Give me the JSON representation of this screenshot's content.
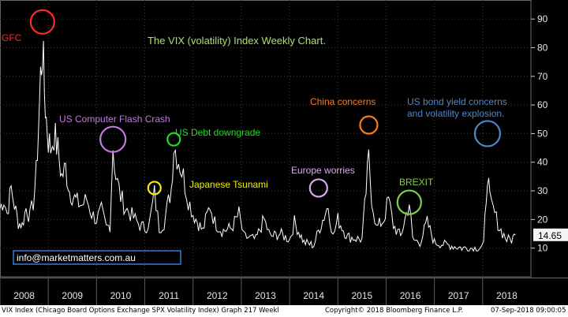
{
  "chart_data": {
    "type": "line",
    "title": "The VIX (volatility) Index Weekly Chart.",
    "xlabel": "",
    "ylabel": "",
    "xlim": [
      2008,
      2019
    ],
    "ylim": [
      0,
      95
    ],
    "x_ticks": [
      "2008",
      "2009",
      "2010",
      "2011",
      "2012",
      "2013",
      "2014",
      "2015",
      "2016",
      "2017",
      "2018"
    ],
    "y_ticks": [
      10,
      20,
      30,
      40,
      50,
      60,
      70,
      80,
      90
    ],
    "grid": true,
    "last_value": "14.65",
    "series": [
      {
        "points": [
          [
            2008.0,
            24
          ],
          [
            2008.08,
            27
          ],
          [
            2008.15,
            22
          ],
          [
            2008.23,
            31
          ],
          [
            2008.3,
            25
          ],
          [
            2008.38,
            19
          ],
          [
            2008.46,
            18
          ],
          [
            2008.54,
            24
          ],
          [
            2008.62,
            21
          ],
          [
            2008.69,
            26
          ],
          [
            2008.75,
            36
          ],
          [
            2008.8,
            53
          ],
          [
            2008.84,
            70
          ],
          [
            2008.88,
            80
          ],
          [
            2008.92,
            65
          ],
          [
            2008.96,
            55
          ],
          [
            2009.0,
            48
          ],
          [
            2009.05,
            45
          ],
          [
            2009.12,
            50
          ],
          [
            2009.2,
            44
          ],
          [
            2009.28,
            35
          ],
          [
            2009.36,
            38
          ],
          [
            2009.44,
            30
          ],
          [
            2009.52,
            28
          ],
          [
            2009.6,
            26
          ],
          [
            2009.7,
            25
          ],
          [
            2009.8,
            27
          ],
          [
            2009.9,
            22
          ],
          [
            2010.0,
            20
          ],
          [
            2010.1,
            23
          ],
          [
            2010.2,
            17
          ],
          [
            2010.28,
            18
          ],
          [
            2010.34,
            46
          ],
          [
            2010.4,
            35
          ],
          [
            2010.5,
            28
          ],
          [
            2010.6,
            24
          ],
          [
            2010.7,
            22
          ],
          [
            2010.8,
            20
          ],
          [
            2010.9,
            18
          ],
          [
            2011.0,
            17
          ],
          [
            2011.1,
            19
          ],
          [
            2011.2,
            29
          ],
          [
            2011.3,
            17
          ],
          [
            2011.4,
            19
          ],
          [
            2011.55,
            31
          ],
          [
            2011.6,
            46
          ],
          [
            2011.7,
            41
          ],
          [
            2011.8,
            35
          ],
          [
            2011.9,
            27
          ],
          [
            2012.0,
            22
          ],
          [
            2012.2,
            16
          ],
          [
            2012.35,
            25
          ],
          [
            2012.45,
            19
          ],
          [
            2012.6,
            16
          ],
          [
            2012.8,
            17
          ],
          [
            2012.95,
            22
          ],
          [
            2013.05,
            14
          ],
          [
            2013.3,
            13
          ],
          [
            2013.47,
            20
          ],
          [
            2013.6,
            14
          ],
          [
            2013.8,
            15
          ],
          [
            2014.0,
            13
          ],
          [
            2014.1,
            19
          ],
          [
            2014.3,
            12
          ],
          [
            2014.5,
            11
          ],
          [
            2014.6,
            16
          ],
          [
            2014.8,
            25
          ],
          [
            2014.9,
            14
          ],
          [
            2015.0,
            20
          ],
          [
            2015.2,
            14
          ],
          [
            2015.5,
            13
          ],
          [
            2015.64,
            41
          ],
          [
            2015.7,
            28
          ],
          [
            2015.8,
            17
          ],
          [
            2015.95,
            20
          ],
          [
            2016.05,
            27
          ],
          [
            2016.15,
            18
          ],
          [
            2016.3,
            14
          ],
          [
            2016.48,
            26
          ],
          [
            2016.55,
            13
          ],
          [
            2016.7,
            12
          ],
          [
            2016.85,
            19
          ],
          [
            2017.0,
            12
          ],
          [
            2017.3,
            11
          ],
          [
            2017.6,
            10
          ],
          [
            2017.9,
            10
          ],
          [
            2018.02,
            11
          ],
          [
            2018.1,
            37
          ],
          [
            2018.15,
            26
          ],
          [
            2018.25,
            22
          ],
          [
            2018.35,
            17
          ],
          [
            2018.5,
            13
          ],
          [
            2018.6,
            13
          ],
          [
            2018.68,
            14.65
          ]
        ]
      }
    ],
    "annotations": [
      {
        "text": "GFC",
        "color": "#ff2a2a",
        "circle_x": 2008.88,
        "circle_y": 89
      },
      {
        "text": "US Computer Flash Crash",
        "color": "#c07ad8",
        "circle_x": 2010.34,
        "circle_y": 48
      },
      {
        "text": "US Debt downgrade",
        "color": "#22dd22",
        "circle_x": 2011.6,
        "circle_y": 48
      },
      {
        "text": "Japanese Tsunami",
        "color": "#f4f000",
        "circle_x": 2011.2,
        "circle_y": 31
      },
      {
        "text": "Europe worries",
        "color": "#d9a8f4",
        "circle_x": 2014.6,
        "circle_y": 31
      },
      {
        "text": "China concerns",
        "color": "#ff7a1a",
        "circle_x": 2015.64,
        "circle_y": 53
      },
      {
        "text": "BREXIT",
        "color": "#7fd04a",
        "circle_x": 2016.48,
        "circle_y": 26
      },
      {
        "text": "US bond yield concerns and volatility explosion.",
        "color": "#4f87c8",
        "circle_x": 2018.1,
        "circle_y": 50
      }
    ]
  },
  "website": "info@marketmatters.com.au",
  "footer": {
    "description": "VIX Index (Chicago Board Options Exchange SPX Volatility Index) Graph 217 Weekl",
    "copyright": "Copyright© 2018 Bloomberg Finance L.P.",
    "timestamp": "07-Sep-2018 09:00:05"
  },
  "colors": {
    "background": "#000000",
    "series": "#ffffff",
    "grid": "#3a3a3a",
    "title": "#a6e26a",
    "website_border": "#3a7bd5"
  }
}
